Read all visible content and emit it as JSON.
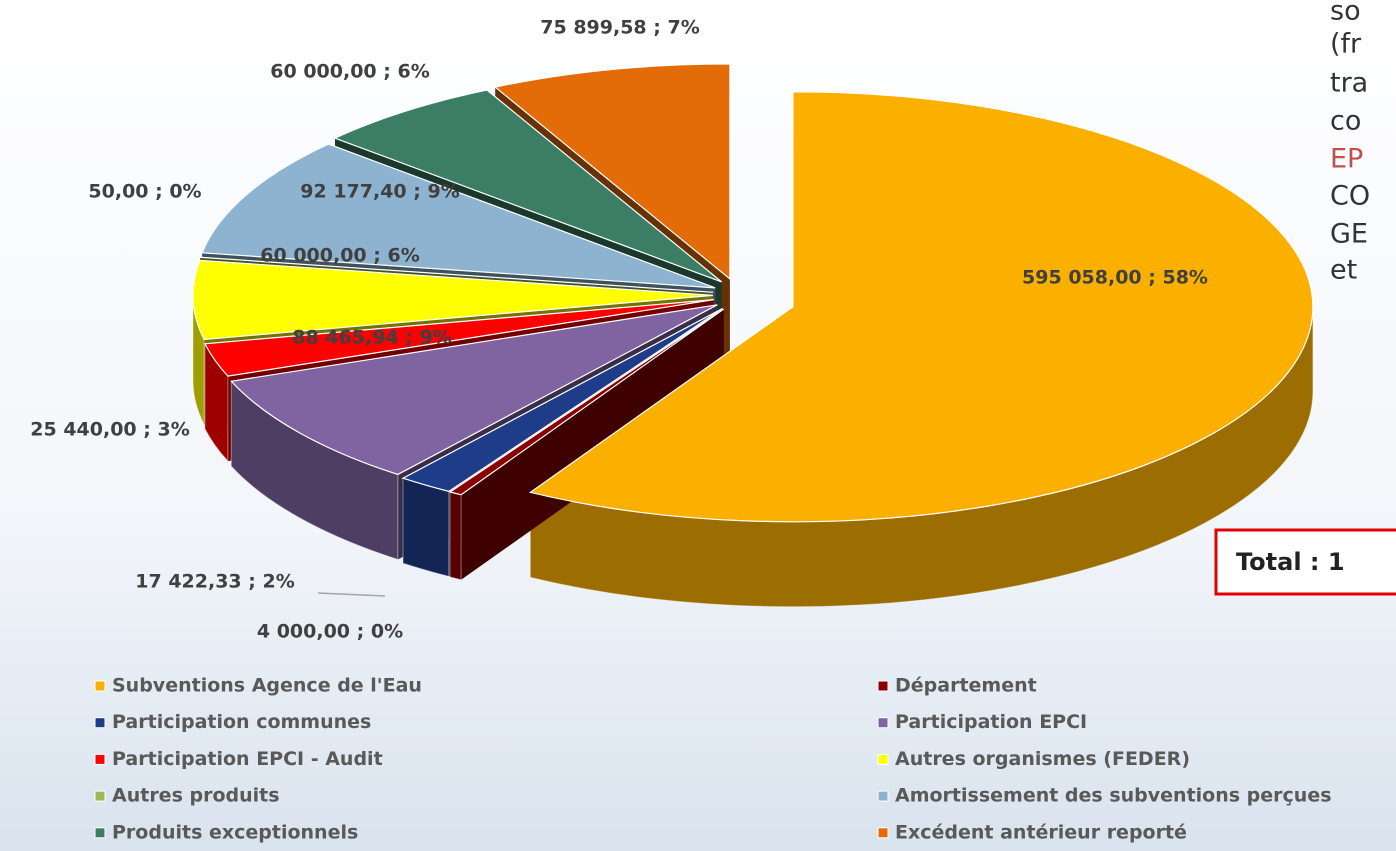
{
  "chart_data": {
    "type": "pie",
    "categories": [
      "Subventions Agence de l'Eau",
      "Département",
      "Participation communes",
      "Participation EPCI",
      "Participation EPCI - Audit",
      "Autres organismes (FEDER)",
      "Autres produits",
      "Amortissement des subventions perçues",
      "Produits exceptionnels",
      "Excédent antérieur reporté"
    ],
    "values": [
      595058,
      4000,
      17422.33,
      88465.94,
      25440,
      60000,
      50,
      92177.4,
      60000,
      75899.58
    ],
    "value_labels": [
      "595 058,00 ; 58%",
      "4 000,00 ; 0%",
      "17 422,33 ; 2%",
      "88 465,94 ; 9%",
      "25 440,00 ; 3%",
      "60 000,00 ; 6%",
      "50,00 ; 0%",
      "92 177,40 ; 9%",
      "60 000,00 ; 6%",
      "75 899,58 ; 7%"
    ],
    "colors": [
      "#fbb000",
      "#8b0000",
      "#1f3c88",
      "#8064a2",
      "#ff0000",
      "#ffff00",
      "#9bbb59",
      "#8db3d0",
      "#3b7d65",
      "#e36c09"
    ],
    "legend": "bottom"
  },
  "side_text": [
    "so",
    "(fr",
    "tra",
    "co",
    "EP",
    "CO",
    "GE",
    "et"
  ],
  "total_label": "Total : 1"
}
